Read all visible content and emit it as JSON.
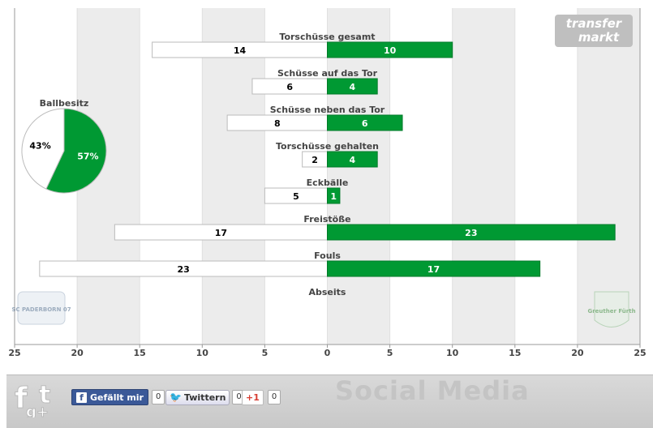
{
  "chart_data": {
    "type": "bar",
    "orientation": "horizontal-diverging",
    "xlim": [
      -25,
      25
    ],
    "x_ticks": [
      25,
      20,
      15,
      10,
      5,
      0,
      5,
      10,
      15,
      20,
      25
    ],
    "grid": true,
    "categories": [
      "Torschüsse gesamt",
      "Schüsse auf das Tor",
      "Schüsse neben das Tor",
      "Torschüsse gehalten",
      "Eckbälle",
      "Freistöße",
      "Fouls",
      "Abseits"
    ],
    "series": [
      {
        "values": [
          14,
          6,
          8,
          2,
          5,
          17,
          23,
          null
        ],
        "color": "#ffffff"
      },
      {
        "values": [
          10,
          4,
          6,
          4,
          1,
          23,
          17,
          null
        ],
        "color": "#009933"
      }
    ],
    "possession": {
      "title": "Ballbesitz",
      "slices": [
        {
          "value": 43,
          "label": "43%",
          "color": "#ffffff"
        },
        {
          "value": 57,
          "label": "57%",
          "color": "#009933"
        }
      ]
    }
  },
  "logos": {
    "brand_line1": "transfer",
    "brand_line2": "markt",
    "home_club": "SC PADERBORN 07",
    "away_club": "Greuther Fürth"
  },
  "social": {
    "title": "Social Media",
    "facebook_label": "Gefällt mir",
    "facebook_count": "0",
    "twitter_label": "Twittern",
    "twitter_count": "0",
    "gplus_label": "+1",
    "gplus_count": "0",
    "icons": [
      "facebook-icon",
      "twitter-icon",
      "google-plus-icon"
    ]
  }
}
